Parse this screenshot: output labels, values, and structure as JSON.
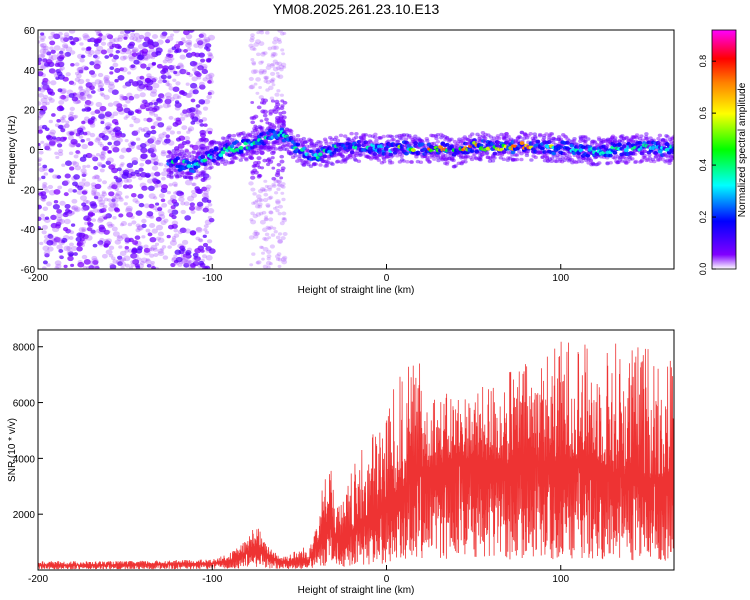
{
  "chart_data": [
    {
      "type": "heatmap",
      "title": "YM08.2025.261.23.10.E13",
      "xlabel": "Height of straight line (km)",
      "ylabel": "Frequency (Hz)",
      "xlim": [
        -200,
        165
      ],
      "ylim": [
        -60,
        60
      ],
      "xticks": [
        -200,
        -100,
        0,
        100
      ],
      "yticks": [
        -60,
        -40,
        -20,
        0,
        20,
        40,
        60
      ],
      "colorbar": {
        "label": "Normalized spectral amplitude",
        "range": [
          0.0,
          0.92
        ],
        "ticks": [
          "0.0",
          "0.2",
          "0.4",
          "0.6",
          "0.8"
        ],
        "stops": [
          "#ffffff",
          "#8000ff",
          "#0000ff",
          "#00ffff",
          "#00ff00",
          "#ffff00",
          "#ff8000",
          "#ff0000",
          "#ff00ff"
        ]
      },
      "band": {
        "x": [
          -125,
          -110,
          -100,
          -90,
          -80,
          -70,
          -60,
          -50,
          -40,
          -30,
          -20,
          -10,
          0,
          10,
          20,
          30,
          40,
          50,
          60,
          70,
          80,
          90,
          100,
          110,
          120,
          130,
          140,
          150,
          160
        ],
        "center": [
          -7,
          -8,
          -3,
          0,
          2,
          6,
          8,
          0,
          -3,
          0,
          1,
          1,
          0,
          1,
          0,
          1,
          -2,
          2,
          1,
          1,
          2,
          1,
          1,
          0,
          -1,
          0,
          0,
          1,
          0
        ]
      }
    },
    {
      "type": "line",
      "xlabel": "Height of straight line (km)",
      "ylabel": "SNR (10 * v/v)",
      "xlim": [
        -200,
        165
      ],
      "ylim": [
        0,
        8600
      ],
      "xticks": [
        -200,
        -100,
        0,
        100
      ],
      "yticks": [
        2000,
        4000,
        6000,
        8000
      ],
      "color": "#ee3333",
      "envelope": {
        "x": [
          -200,
          -150,
          -100,
          -90,
          -80,
          -75,
          -70,
          -60,
          -45,
          -35,
          -32,
          -30,
          -25,
          -20,
          -10,
          0,
          10,
          20,
          30,
          40,
          50,
          60,
          70,
          80,
          90,
          100,
          110,
          120,
          130,
          140,
          150,
          165
        ],
        "mean": [
          180,
          200,
          250,
          350,
          650,
          900,
          600,
          300,
          350,
          1500,
          2800,
          1200,
          900,
          1400,
          1900,
          2400,
          3000,
          3500,
          3800,
          4000,
          4000,
          3900,
          3800,
          3800,
          3900,
          3900,
          4000,
          4000,
          3500,
          3400,
          3300,
          3300
        ],
        "peak": [
          320,
          320,
          380,
          600,
          1100,
          1800,
          1000,
          500,
          900,
          3500,
          4200,
          2500,
          2500,
          3600,
          4800,
          6000,
          7300,
          7500,
          6200,
          6500,
          6300,
          6800,
          7200,
          7500,
          7800,
          8300,
          8500,
          7600,
          8400,
          8100,
          8200,
          7800
        ]
      }
    }
  ]
}
